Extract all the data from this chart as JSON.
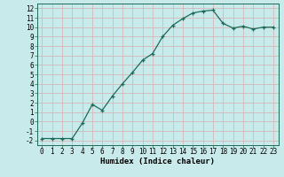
{
  "x": [
    0,
    1,
    2,
    3,
    4,
    5,
    6,
    7,
    8,
    9,
    10,
    11,
    12,
    13,
    14,
    15,
    16,
    17,
    18,
    19,
    20,
    21,
    22,
    23
  ],
  "y": [
    -1.8,
    -1.8,
    -1.8,
    -1.8,
    -0.2,
    1.8,
    1.2,
    2.7,
    4.0,
    5.2,
    6.5,
    7.2,
    9.0,
    10.2,
    10.9,
    11.5,
    11.7,
    11.8,
    10.4,
    9.9,
    10.1,
    9.8,
    10.0,
    10.0
  ],
  "xlabel": "Humidex (Indice chaleur)",
  "line_color": "#1a6b5a",
  "marker": "+",
  "bg_color": "#c8eaea",
  "grid_color": "#d4b8b8",
  "xlim": [
    -0.5,
    23.5
  ],
  "ylim": [
    -2.5,
    12.5
  ],
  "xticks": [
    0,
    1,
    2,
    3,
    4,
    5,
    6,
    7,
    8,
    9,
    10,
    11,
    12,
    13,
    14,
    15,
    16,
    17,
    18,
    19,
    20,
    21,
    22,
    23
  ],
  "yticks": [
    -2,
    -1,
    0,
    1,
    2,
    3,
    4,
    5,
    6,
    7,
    8,
    9,
    10,
    11,
    12
  ],
  "xlabel_fontsize": 6.5,
  "tick_fontsize": 5.5
}
